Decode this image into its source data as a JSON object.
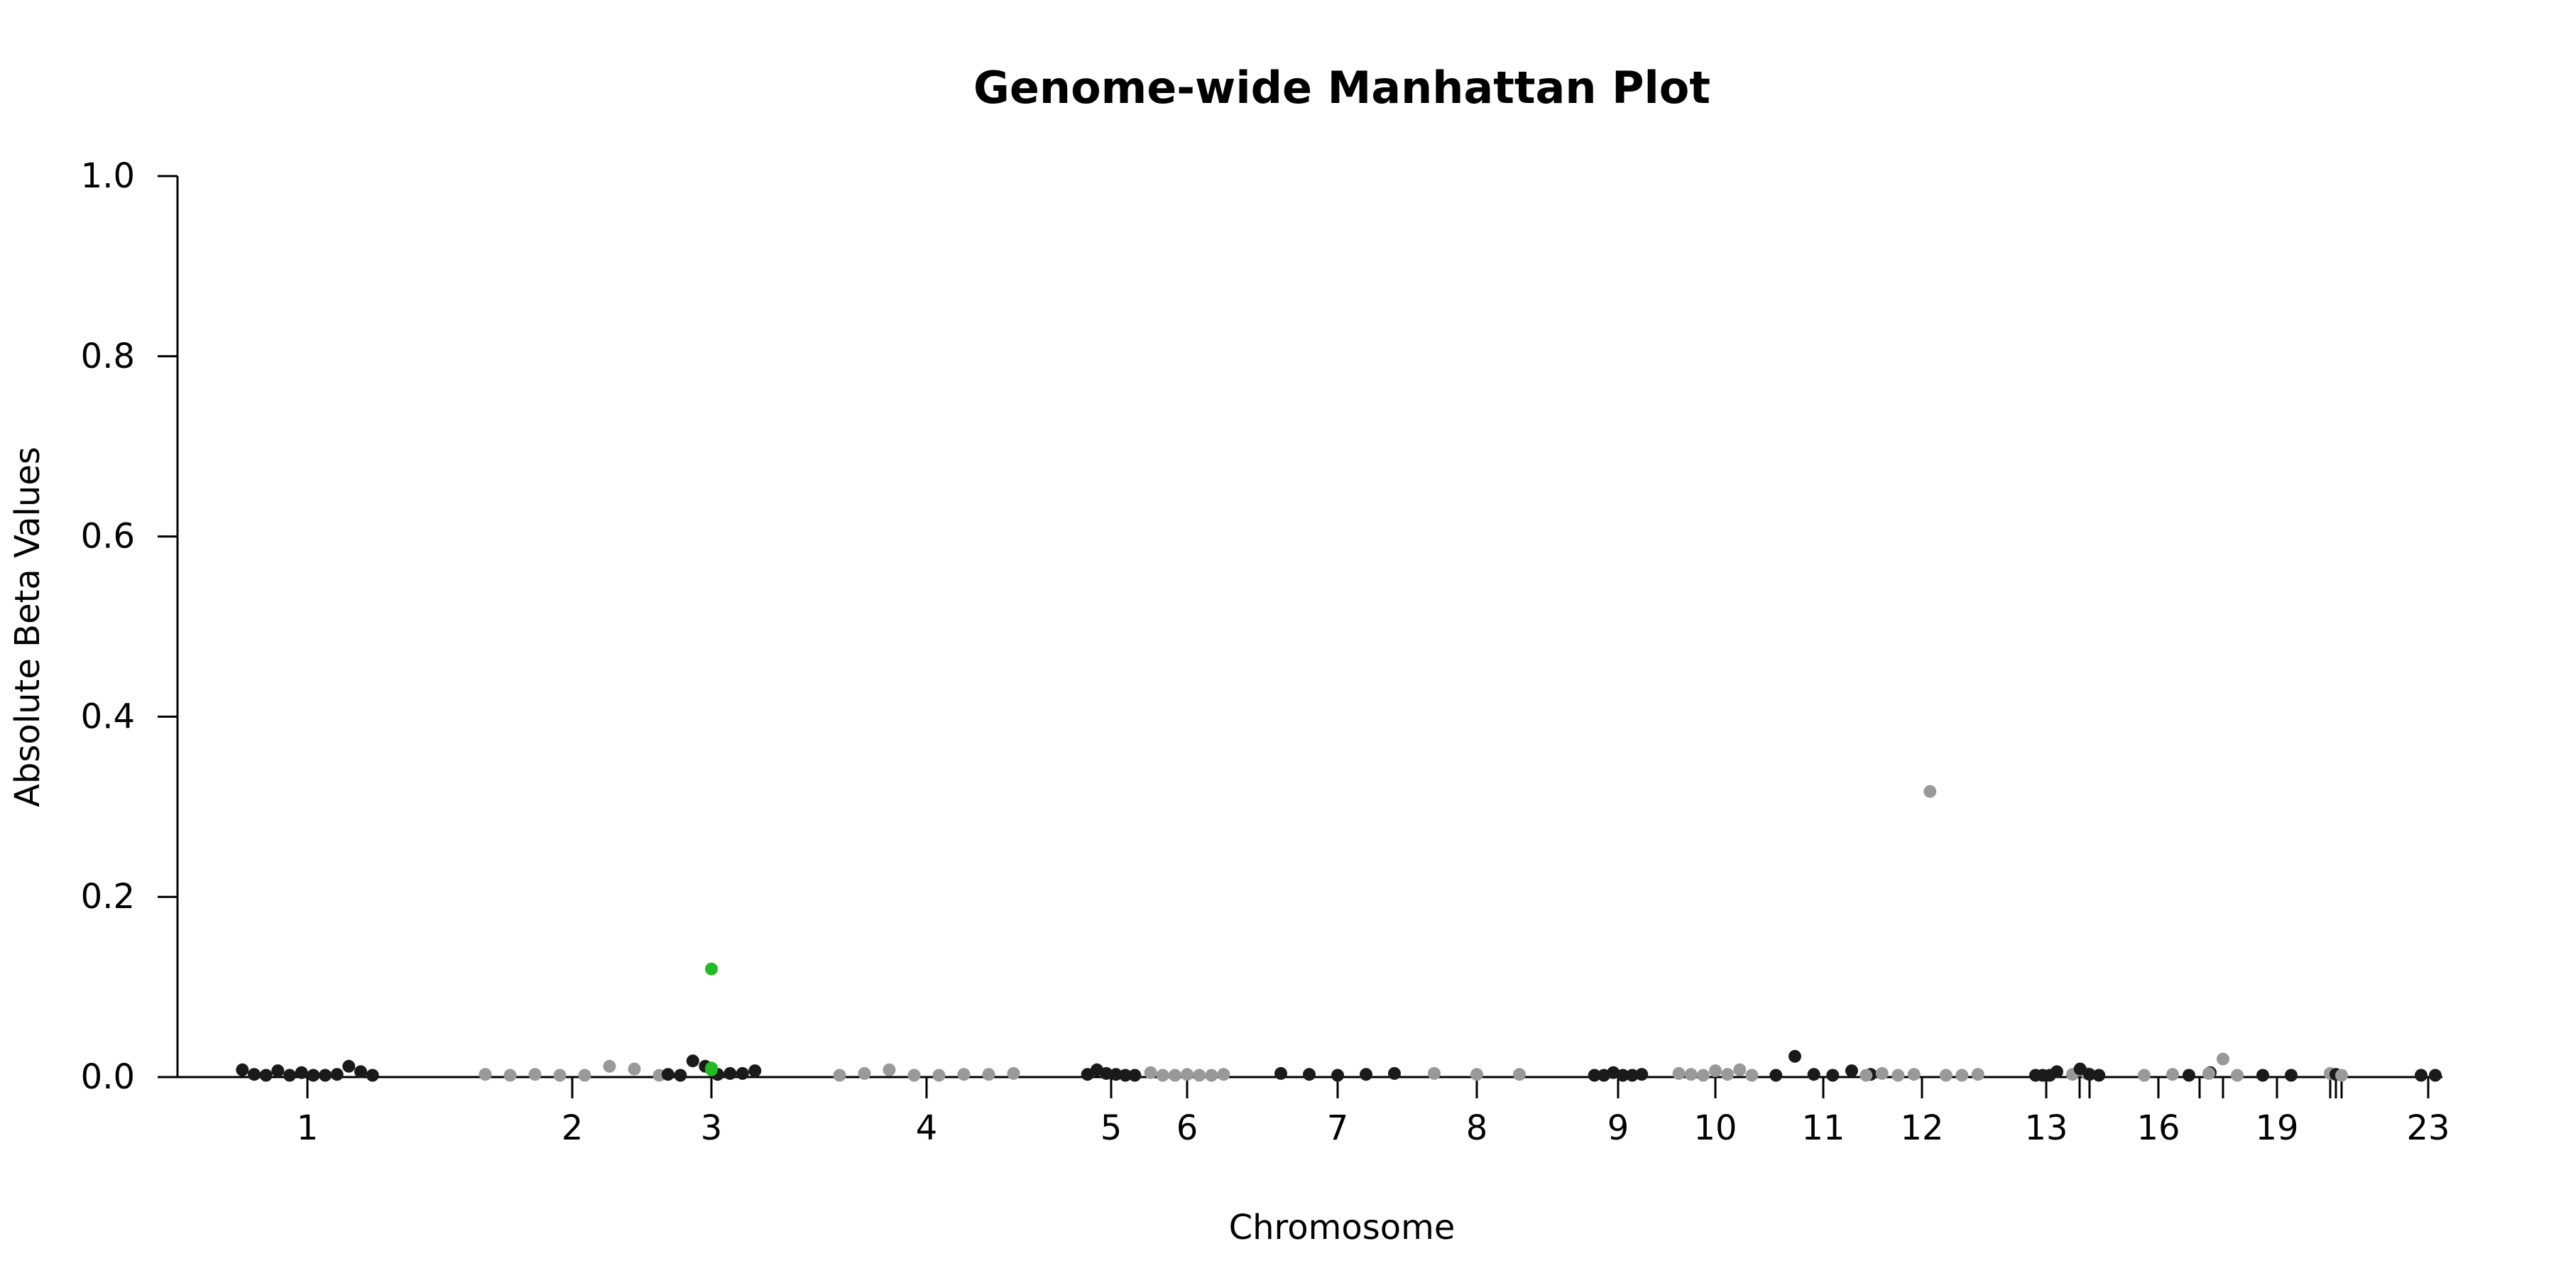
{
  "chart_data": {
    "type": "scatter",
    "title": "Genome-wide Manhattan Plot",
    "xlabel": "Chromosome",
    "ylabel": "Absolute Beta Values",
    "ylim": [
      0,
      1
    ],
    "y_ticks": [
      "0.0",
      "0.2",
      "0.4",
      "0.6",
      "0.8",
      "1.0"
    ],
    "x_ticks": [
      "1",
      "2",
      "3",
      "4",
      "5",
      "6",
      "7",
      "8",
      "9",
      "10",
      "11",
      "12",
      "13",
      "",
      "",
      "16",
      "",
      "",
      "19",
      "",
      "",
      "",
      "23"
    ],
    "grid": false,
    "colors": {
      "odd": "#1a1a1a",
      "even": "#999999",
      "highlight": "#22bb22"
    },
    "points": [
      {
        "chr": 1,
        "v": 0.008
      },
      {
        "chr": 1,
        "v": 0.003
      },
      {
        "chr": 1,
        "v": 0.002
      },
      {
        "chr": 1,
        "v": 0.007
      },
      {
        "chr": 1,
        "v": 0.002
      },
      {
        "chr": 1,
        "v": 0.005
      },
      {
        "chr": 1,
        "v": 0.002
      },
      {
        "chr": 1,
        "v": 0.002
      },
      {
        "chr": 1,
        "v": 0.003
      },
      {
        "chr": 1,
        "v": 0.012
      },
      {
        "chr": 1,
        "v": 0.006
      },
      {
        "chr": 1,
        "v": 0.002
      },
      {
        "chr": 2,
        "v": 0.003
      },
      {
        "chr": 2,
        "v": 0.002
      },
      {
        "chr": 2,
        "v": 0.003
      },
      {
        "chr": 2,
        "v": 0.002
      },
      {
        "chr": 2,
        "v": 0.002
      },
      {
        "chr": 2,
        "v": 0.012
      },
      {
        "chr": 2,
        "v": 0.009
      },
      {
        "chr": 2,
        "v": 0.002
      },
      {
        "chr": 3,
        "v": 0.003
      },
      {
        "chr": 3,
        "v": 0.002
      },
      {
        "chr": 3,
        "v": 0.018
      },
      {
        "chr": 3,
        "v": 0.012
      },
      {
        "chr": 3,
        "v": 0.003
      },
      {
        "chr": 3,
        "v": 0.004
      },
      {
        "chr": 3,
        "v": 0.004
      },
      {
        "chr": 3,
        "v": 0.007
      },
      {
        "chr": 4,
        "v": 0.002
      },
      {
        "chr": 4,
        "v": 0.004
      },
      {
        "chr": 4,
        "v": 0.008
      },
      {
        "chr": 4,
        "v": 0.002
      },
      {
        "chr": 4,
        "v": 0.002
      },
      {
        "chr": 4,
        "v": 0.003
      },
      {
        "chr": 4,
        "v": 0.003
      },
      {
        "chr": 4,
        "v": 0.004
      },
      {
        "chr": 5,
        "v": 0.003
      },
      {
        "chr": 5,
        "v": 0.008
      },
      {
        "chr": 5,
        "v": 0.004
      },
      {
        "chr": 5,
        "v": 0.003
      },
      {
        "chr": 5,
        "v": 0.002
      },
      {
        "chr": 5,
        "v": 0.002
      },
      {
        "chr": 6,
        "v": 0.005
      },
      {
        "chr": 6,
        "v": 0.002
      },
      {
        "chr": 6,
        "v": 0.002
      },
      {
        "chr": 6,
        "v": 0.003
      },
      {
        "chr": 6,
        "v": 0.002
      },
      {
        "chr": 6,
        "v": 0.002
      },
      {
        "chr": 6,
        "v": 0.003
      },
      {
        "chr": 7,
        "v": 0.004
      },
      {
        "chr": 7,
        "v": 0.003
      },
      {
        "chr": 7,
        "v": 0.002
      },
      {
        "chr": 7,
        "v": 0.003
      },
      {
        "chr": 7,
        "v": 0.004
      },
      {
        "chr": 8,
        "v": 0.004
      },
      {
        "chr": 8,
        "v": 0.003
      },
      {
        "chr": 8,
        "v": 0.003
      },
      {
        "chr": 9,
        "v": 0.002
      },
      {
        "chr": 9,
        "v": 0.002
      },
      {
        "chr": 9,
        "v": 0.005
      },
      {
        "chr": 9,
        "v": 0.002
      },
      {
        "chr": 9,
        "v": 0.002
      },
      {
        "chr": 9,
        "v": 0.003
      },
      {
        "chr": 10,
        "v": 0.004
      },
      {
        "chr": 10,
        "v": 0.003
      },
      {
        "chr": 10,
        "v": 0.002
      },
      {
        "chr": 10,
        "v": 0.007
      },
      {
        "chr": 10,
        "v": 0.003
      },
      {
        "chr": 10,
        "v": 0.008
      },
      {
        "chr": 10,
        "v": 0.002
      },
      {
        "chr": 11,
        "v": 0.002
      },
      {
        "chr": 11,
        "v": 0.023
      },
      {
        "chr": 11,
        "v": 0.003
      },
      {
        "chr": 11,
        "v": 0.002
      },
      {
        "chr": 11,
        "v": 0.007
      },
      {
        "chr": 11,
        "v": 0.003
      },
      {
        "chr": 12,
        "v": 0.002
      },
      {
        "chr": 12,
        "v": 0.004
      },
      {
        "chr": 12,
        "v": 0.002
      },
      {
        "chr": 12,
        "v": 0.003
      },
      {
        "chr": 12,
        "v": 0.317
      },
      {
        "chr": 12,
        "v": 0.002
      },
      {
        "chr": 12,
        "v": 0.002
      },
      {
        "chr": 12,
        "v": 0.003
      },
      {
        "chr": 13,
        "v": 0.002
      },
      {
        "chr": 13,
        "v": 0.002
      },
      {
        "chr": 13,
        "v": 0.002
      },
      {
        "chr": 13,
        "v": 0.006
      },
      {
        "chr": 14,
        "v": 0.003
      },
      {
        "chr": 14,
        "v": 0.004
      },
      {
        "chr": 15,
        "v": 0.009
      },
      {
        "chr": 15,
        "v": 0.003
      },
      {
        "chr": 15,
        "v": 0.002
      },
      {
        "chr": 16,
        "v": 0.002
      },
      {
        "chr": 16,
        "v": 0.003
      },
      {
        "chr": 17,
        "v": 0.002
      },
      {
        "chr": 17,
        "v": 0.005
      },
      {
        "chr": 18,
        "v": 0.004
      },
      {
        "chr": 18,
        "v": 0.02
      },
      {
        "chr": 18,
        "v": 0.002
      },
      {
        "chr": 19,
        "v": 0.002
      },
      {
        "chr": 19,
        "v": 0.002
      },
      {
        "chr": 20,
        "v": 0.004
      },
      {
        "chr": 21,
        "v": 0.003
      },
      {
        "chr": 22,
        "v": 0.002
      },
      {
        "chr": 23,
        "v": 0.002
      },
      {
        "chr": 23,
        "v": 0.002
      },
      {
        "chr": 3,
        "v": 0.12,
        "highlight": true
      },
      {
        "chr": 3,
        "v": 0.01,
        "highlight": true
      },
      {
        "chr": 3,
        "v": 0.008,
        "highlight": true
      }
    ]
  }
}
